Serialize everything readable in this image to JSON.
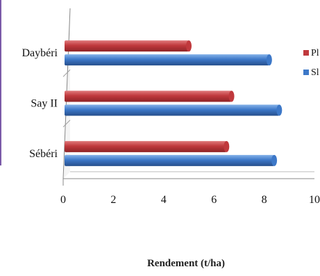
{
  "chart_data": {
    "type": "bar",
    "orientation": "horizontal",
    "categories": [
      "Daybéri",
      "Say II",
      "Sébéri"
    ],
    "series": [
      {
        "name": "Pl",
        "color": "#c0393d",
        "values": [
          5.0,
          6.7,
          6.5
        ]
      },
      {
        "name": "Sl",
        "color": "#3d78c8",
        "values": [
          8.2,
          8.6,
          8.4
        ]
      }
    ],
    "xlim": [
      0,
      10
    ],
    "x_ticks": [
      "0",
      "2",
      "4",
      "6",
      "8",
      "10"
    ],
    "xlabel": "Rendement (t/ha)",
    "ylabel": "",
    "grid": true,
    "legend_position": "right (partially clipped)"
  }
}
